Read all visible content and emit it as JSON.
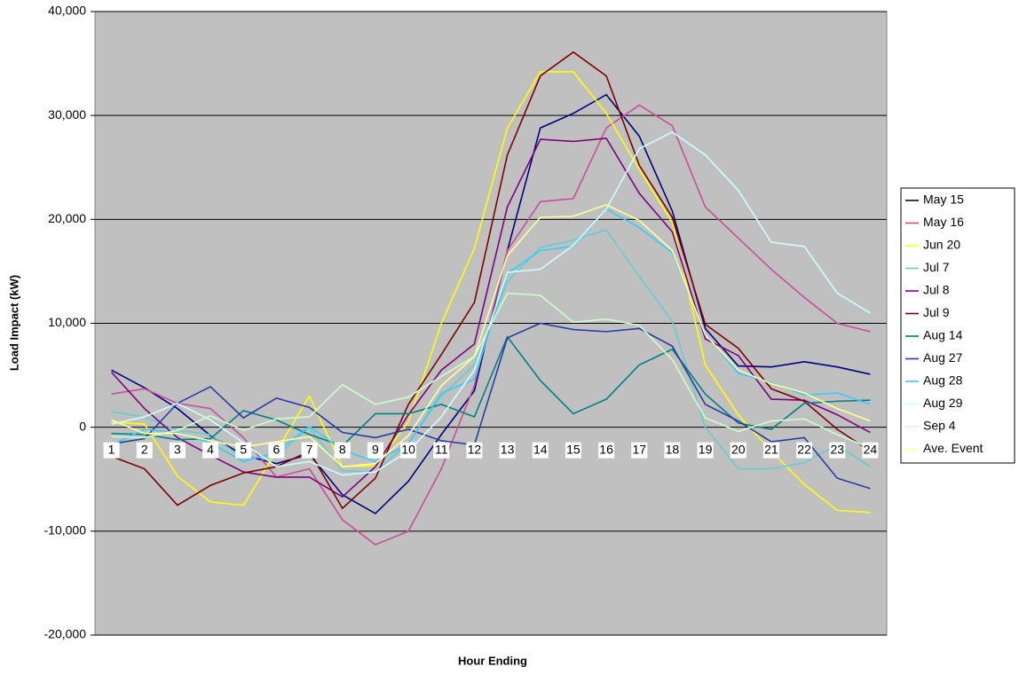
{
  "chart_data": {
    "type": "line",
    "x_label": "Hour Ending",
    "y_label": "Load Impact (kW)",
    "categories": [
      "1",
      "2",
      "3",
      "4",
      "5",
      "6",
      "7",
      "8",
      "9",
      "10",
      "11",
      "12",
      "13",
      "14",
      "15",
      "16",
      "17",
      "18",
      "19",
      "20",
      "21",
      "22",
      "23",
      "24"
    ],
    "ylim": [
      -20000,
      40000
    ],
    "yticks": [
      {
        "value": -20000,
        "label": "-20,000"
      },
      {
        "value": -10000,
        "label": "-10,000"
      },
      0,
      {
        "value": 10000,
        "label": "10,000"
      },
      {
        "value": 20000,
        "label": "20,000"
      },
      {
        "value": 30000,
        "label": "30,000"
      },
      {
        "value": 40000,
        "label": "40,000"
      }
    ],
    "grid": true,
    "legend": "right",
    "series": [
      {
        "name": "May 15",
        "color": "#000080",
        "values": [
          5500,
          3800,
          1800,
          -800,
          -2700,
          -3500,
          -2600,
          -6500,
          -8300,
          -5200,
          -700,
          3500,
          17000,
          28800,
          30200,
          32000,
          28000,
          20800,
          9500,
          5900,
          5800,
          6300,
          5800,
          5100
        ]
      },
      {
        "name": "May 16",
        "color": "#cc4c99",
        "values": [
          3200,
          3700,
          2300,
          1800,
          -1000,
          -4800,
          -4000,
          -8900,
          -11300,
          -10000,
          -4000,
          4000,
          17000,
          21700,
          22000,
          28800,
          31000,
          29000,
          21200,
          18200,
          15200,
          12500,
          10000,
          9200
        ]
      },
      {
        "name": "Jun 20",
        "color": "#ffff00",
        "values": [
          500,
          300,
          -4700,
          -7200,
          -7500,
          -2300,
          3000,
          -3800,
          -3700,
          500,
          10000,
          17200,
          28800,
          34200,
          34200,
          30200,
          24800,
          19700,
          6000,
          1200,
          -2300,
          -5500,
          -8000,
          -8200
        ]
      },
      {
        "name": "Jul 7",
        "color": "#66cccc",
        "values": [
          1500,
          1000,
          -300,
          -700,
          -3000,
          -2800,
          0,
          -4200,
          -4300,
          -1500,
          3000,
          6000,
          14000,
          17300,
          18000,
          19000,
          14500,
          10200,
          0,
          -4000,
          -4000,
          -3400,
          -1700,
          -3800
        ]
      },
      {
        "name": "Jul 8",
        "color": "#800080",
        "values": [
          5300,
          1800,
          -1000,
          -2700,
          -4300,
          -4800,
          -4800,
          -6700,
          -3800,
          1200,
          5500,
          8000,
          21200,
          27700,
          27500,
          27800,
          22500,
          18800,
          8500,
          6900,
          2700,
          2600,
          1200,
          -500
        ]
      },
      {
        "name": "Jul 9",
        "color": "#800000",
        "values": [
          -2800,
          -4000,
          -7500,
          -5600,
          -4400,
          -3800,
          -2300,
          -7800,
          -4900,
          2200,
          7000,
          12000,
          26200,
          33800,
          36100,
          33800,
          25200,
          20200,
          9900,
          7600,
          3700,
          2500,
          -200,
          -2300
        ]
      },
      {
        "name": "Aug 14",
        "color": "#008080",
        "values": [
          -600,
          -700,
          -1200,
          -1100,
          1600,
          700,
          -700,
          -1800,
          1300,
          1300,
          2200,
          1000,
          8700,
          4500,
          1300,
          2700,
          6000,
          7500,
          3200,
          400,
          -200,
          2300,
          2500,
          2600
        ]
      },
      {
        "name": "Aug 27",
        "color": "#2a3aa8",
        "values": [
          -1600,
          -1100,
          2300,
          3900,
          900,
          2800,
          1900,
          -500,
          -1000,
          -200,
          -1300,
          -1700,
          8600,
          10000,
          9400,
          9200,
          9500,
          7800,
          2200,
          600,
          -1400,
          -1000,
          -4900,
          -5900
        ]
      },
      {
        "name": "Aug 28",
        "color": "#33ccff",
        "values": [
          -1700,
          -200,
          -500,
          -1500,
          -3300,
          -2400,
          100,
          -2200,
          -3300,
          -1600,
          3300,
          4600,
          14800,
          17000,
          17400,
          21000,
          19200,
          16800,
          9000,
          5200,
          4300,
          3100,
          3300,
          2200
        ]
      },
      {
        "name": "Aug 29",
        "color": "#ccffff",
        "values": [
          300,
          1000,
          2300,
          700,
          -1500,
          -3800,
          -3300,
          -4600,
          -4300,
          -2300,
          1000,
          5500,
          14900,
          15200,
          17500,
          21000,
          26800,
          28400,
          26200,
          22800,
          17800,
          17400,
          12900,
          11000
        ]
      },
      {
        "name": "Sep 4",
        "color": "#ccffcc",
        "values": [
          -900,
          -1000,
          -300,
          1100,
          -300,
          800,
          1000,
          4100,
          2200,
          2900,
          4900,
          6800,
          12900,
          12700,
          10100,
          10400,
          9800,
          6500,
          900,
          -400,
          600,
          800,
          -700,
          -2000
        ]
      },
      {
        "name": "Ave. Event",
        "color": "#ffff99",
        "values": [
          700,
          -600,
          -600,
          -1300,
          -1900,
          -1400,
          -900,
          -3800,
          -3500,
          -800,
          4000,
          6800,
          16500,
          20200,
          20300,
          21400,
          19900,
          17000,
          8900,
          5500,
          4200,
          3300,
          1800,
          600
        ]
      }
    ]
  }
}
